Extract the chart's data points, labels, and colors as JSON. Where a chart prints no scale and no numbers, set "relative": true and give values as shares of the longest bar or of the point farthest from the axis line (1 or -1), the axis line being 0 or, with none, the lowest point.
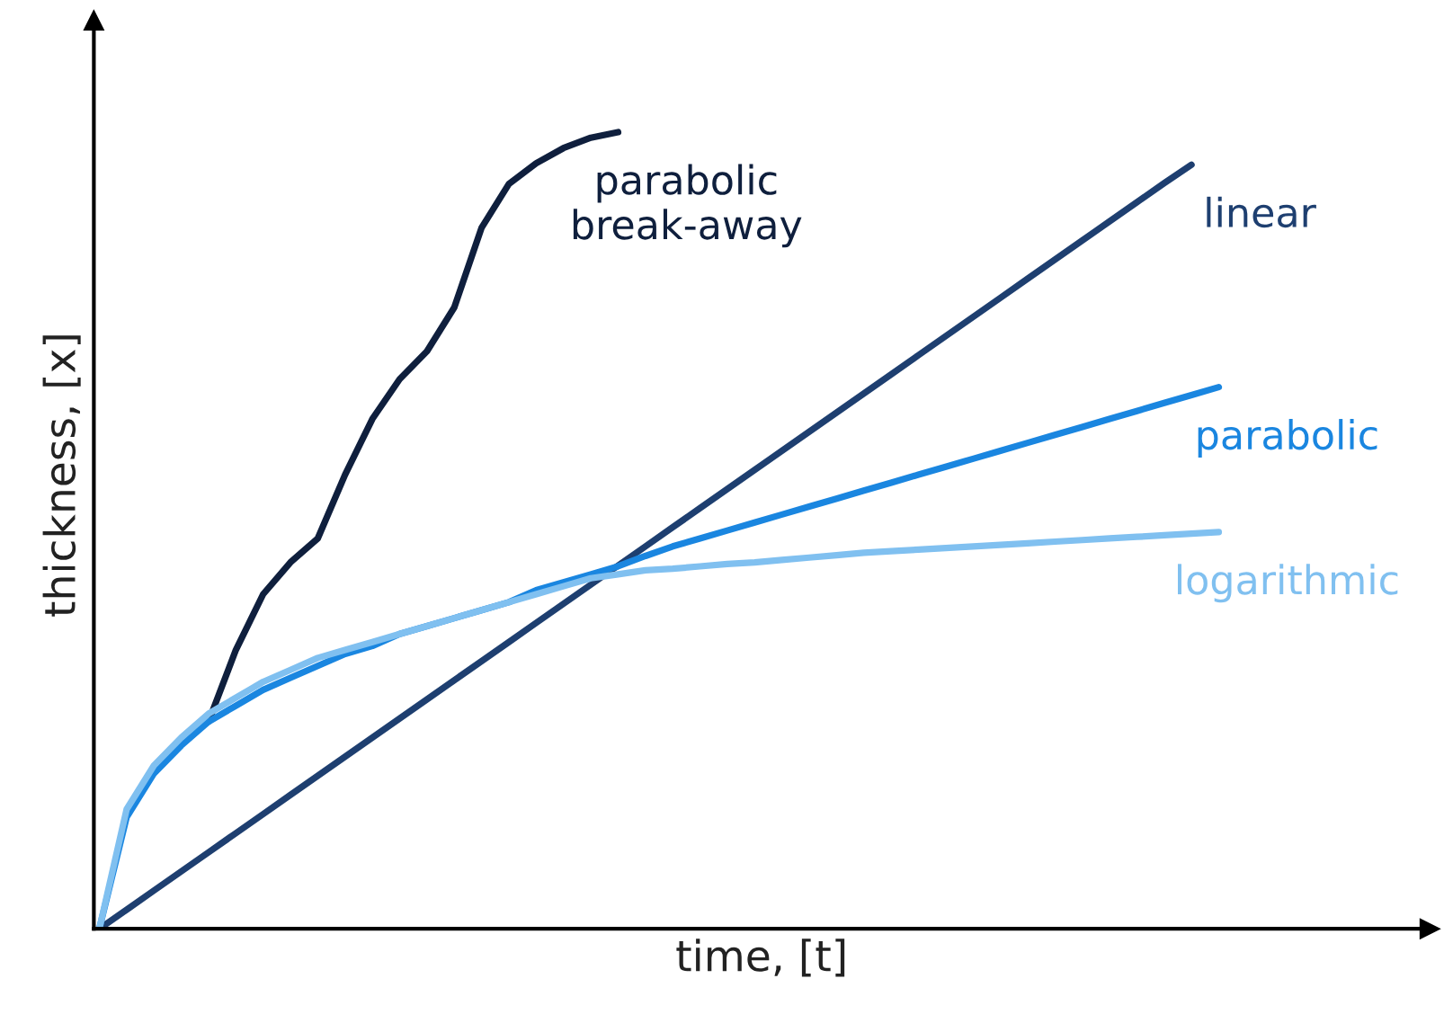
{
  "chart_data": {
    "type": "line",
    "relative": true,
    "xlabel": "time, [t]",
    "ylabel": "thickness, [x]",
    "marker": "none",
    "line_style": "solid",
    "categories": [
      null,
      null,
      null,
      null,
      null,
      null,
      null,
      null,
      null,
      null,
      null,
      null,
      null,
      null,
      null,
      null,
      null,
      null,
      null,
      null,
      null,
      null,
      null,
      null,
      null,
      null,
      null,
      null,
      null,
      null,
      null,
      null,
      null,
      null,
      null,
      null,
      null,
      null,
      null,
      null,
      null,
      null
    ],
    "series": [
      {
        "name": "parabolic\nbreak-away",
        "color": "#0f1f3d",
        "values": [
          null,
          null,
          null,
          null,
          0.26,
          0.35,
          0.42,
          0.46,
          0.49,
          0.57,
          0.64,
          0.69,
          0.725,
          0.78,
          0.88,
          0.935,
          0.961,
          0.98,
          0.993,
          1.0,
          null,
          null,
          null,
          null,
          null,
          null,
          null,
          null,
          null,
          null,
          null,
          null,
          null,
          null,
          null,
          null,
          null,
          null,
          null,
          null,
          null,
          null
        ]
      },
      {
        "name": "linear",
        "color": "#1e3f70",
        "values": [
          0,
          0.024,
          0.048,
          0.072,
          0.096,
          0.12,
          0.144,
          0.168,
          0.192,
          0.216,
          0.24,
          0.264,
          0.288,
          0.312,
          0.336,
          0.36,
          0.384,
          0.408,
          0.432,
          0.456,
          0.48,
          0.504,
          0.528,
          0.552,
          0.576,
          0.6,
          0.624,
          0.648,
          0.672,
          0.696,
          0.72,
          0.744,
          0.768,
          0.792,
          0.816,
          0.84,
          0.864,
          0.888,
          0.912,
          0.936,
          0.959,
          null
        ]
      },
      {
        "name": "parabolic",
        "color": "#1a86e0",
        "values": [
          0,
          0.14,
          0.195,
          0.23,
          0.26,
          0.28,
          0.3,
          0.315,
          0.33,
          0.345,
          0.355,
          0.37,
          0.38,
          0.39,
          0.4,
          0.41,
          0.425,
          0.435,
          0.445,
          0.455,
          0.468,
          0.48,
          0.49,
          0.5,
          0.51,
          0.52,
          0.53,
          0.54,
          0.55,
          0.56,
          0.57,
          0.58,
          0.59,
          0.6,
          0.61,
          0.62,
          0.63,
          0.64,
          0.65,
          0.66,
          0.67,
          0.68
        ]
      },
      {
        "name": "logarithmic",
        "color": "#80c0f0",
        "values": [
          0,
          0.15,
          0.205,
          0.24,
          0.27,
          0.29,
          0.31,
          0.325,
          0.34,
          0.35,
          0.36,
          0.37,
          0.38,
          0.39,
          0.4,
          0.41,
          0.42,
          0.43,
          0.44,
          0.445,
          0.45,
          0.452,
          0.455,
          0.458,
          0.46,
          0.463,
          0.466,
          0.469,
          0.472,
          0.474,
          0.476,
          0.478,
          0.48,
          0.482,
          0.484,
          0.486,
          0.488,
          0.49,
          0.492,
          0.494,
          0.496,
          0.498
        ]
      }
    ]
  }
}
